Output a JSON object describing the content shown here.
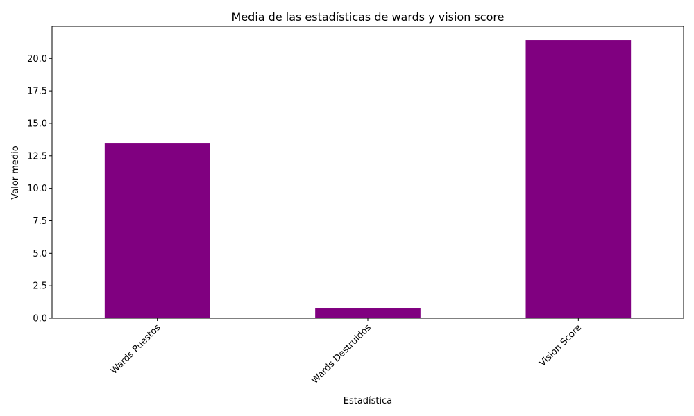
{
  "chart_data": {
    "type": "bar",
    "title": "Media de las estadísticas de wards y vision score",
    "xlabel": "Estadística",
    "ylabel": "Valor medio",
    "categories": [
      "Wards Puestos",
      "Wards Destruidos",
      "Vision Score"
    ],
    "values": [
      13.5,
      0.8,
      21.4
    ],
    "ylim": [
      0,
      22.47
    ],
    "yticks": [
      0.0,
      2.5,
      5.0,
      7.5,
      10.0,
      12.5,
      15.0,
      17.5,
      20.0
    ],
    "ytick_labels": [
      "0.0",
      "2.5",
      "5.0",
      "7.5",
      "10.0",
      "12.5",
      "15.0",
      "17.5",
      "20.0"
    ],
    "bar_color": "#800080",
    "xtick_rotation_degrees": 45,
    "grid": false,
    "legend": "none"
  }
}
